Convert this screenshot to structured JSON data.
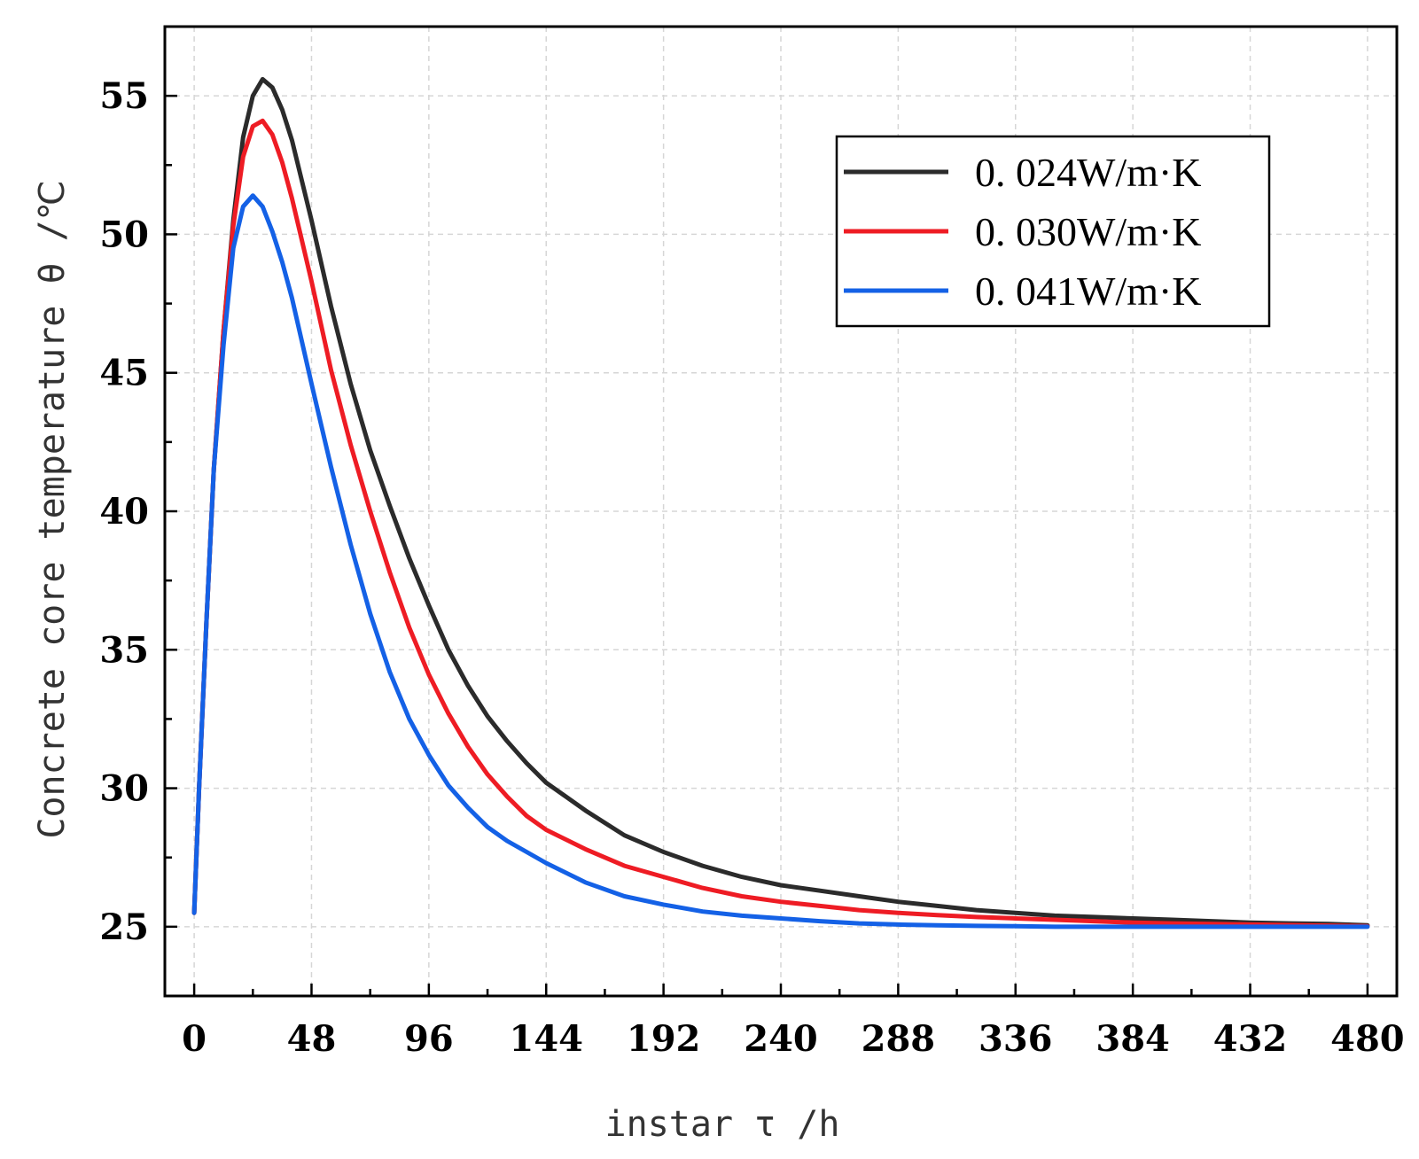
{
  "chart_data": {
    "type": "line",
    "title": "",
    "xlabel": "instar τ /h",
    "ylabel": "Concrete core temperature θ /℃",
    "xlim": [
      -12,
      492
    ],
    "ylim": [
      22.5,
      57.5
    ],
    "xticks": [
      0,
      48,
      96,
      144,
      192,
      240,
      288,
      336,
      384,
      432,
      480
    ],
    "yticks": [
      25,
      30,
      35,
      40,
      45,
      50,
      55
    ],
    "grid": true,
    "legend_position": "top-right",
    "series": [
      {
        "name": "0. 024W/m·K",
        "color": "#2b2b2b",
        "x": [
          0,
          2,
          5,
          8,
          12,
          16,
          20,
          24,
          28,
          32,
          36,
          40,
          48,
          56,
          64,
          72,
          80,
          88,
          96,
          104,
          112,
          120,
          128,
          136,
          144,
          160,
          176,
          192,
          208,
          224,
          240,
          256,
          272,
          288,
          304,
          320,
          336,
          352,
          368,
          384,
          400,
          416,
          432,
          448,
          464,
          480
        ],
        "y": [
          25.5,
          30.0,
          36.0,
          41.5,
          46.5,
          50.5,
          53.5,
          55.0,
          55.6,
          55.3,
          54.5,
          53.4,
          50.5,
          47.4,
          44.6,
          42.2,
          40.2,
          38.3,
          36.6,
          35.0,
          33.7,
          32.6,
          31.7,
          30.9,
          30.2,
          29.2,
          28.3,
          27.7,
          27.2,
          26.8,
          26.5,
          26.3,
          26.1,
          25.9,
          25.75,
          25.6,
          25.5,
          25.4,
          25.35,
          25.3,
          25.25,
          25.2,
          25.15,
          25.12,
          25.1,
          25.05
        ]
      },
      {
        "name": "0. 030W/m·K",
        "color": "#ee1c24",
        "x": [
          0,
          2,
          5,
          8,
          12,
          16,
          20,
          24,
          28,
          32,
          36,
          40,
          48,
          56,
          64,
          72,
          80,
          88,
          96,
          104,
          112,
          120,
          128,
          136,
          144,
          160,
          176,
          192,
          208,
          224,
          240,
          256,
          272,
          288,
          304,
          320,
          336,
          352,
          368,
          384,
          400,
          416,
          432,
          448,
          464,
          480
        ],
        "y": [
          25.5,
          30.0,
          36.0,
          41.5,
          46.5,
          50.3,
          52.8,
          53.9,
          54.1,
          53.6,
          52.6,
          51.3,
          48.3,
          45.1,
          42.4,
          40.0,
          37.8,
          35.8,
          34.1,
          32.7,
          31.5,
          30.5,
          29.7,
          29.0,
          28.5,
          27.8,
          27.2,
          26.8,
          26.4,
          26.1,
          25.9,
          25.75,
          25.6,
          25.5,
          25.42,
          25.35,
          25.3,
          25.25,
          25.2,
          25.15,
          25.12,
          25.1,
          25.08,
          25.06,
          25.04,
          25.02
        ]
      },
      {
        "name": "0. 041W/m·K",
        "color": "#1461e6",
        "x": [
          0,
          2,
          5,
          8,
          12,
          16,
          20,
          24,
          28,
          32,
          36,
          40,
          48,
          56,
          64,
          72,
          80,
          88,
          96,
          104,
          112,
          120,
          128,
          136,
          144,
          160,
          176,
          192,
          208,
          224,
          240,
          256,
          272,
          288,
          304,
          320,
          336,
          352,
          368,
          384,
          400,
          416,
          432,
          448,
          464,
          480
        ],
        "y": [
          25.5,
          30.0,
          36.0,
          41.5,
          46.0,
          49.5,
          51.0,
          51.4,
          51.0,
          50.1,
          49.0,
          47.7,
          44.6,
          41.6,
          38.8,
          36.3,
          34.2,
          32.5,
          31.2,
          30.1,
          29.3,
          28.6,
          28.1,
          27.7,
          27.3,
          26.6,
          26.1,
          25.8,
          25.55,
          25.4,
          25.3,
          25.2,
          25.12,
          25.08,
          25.05,
          25.03,
          25.02,
          25.0,
          25.0,
          25.0,
          25.0,
          25.0,
          25.0,
          25.0,
          25.0,
          25.0
        ]
      }
    ]
  }
}
